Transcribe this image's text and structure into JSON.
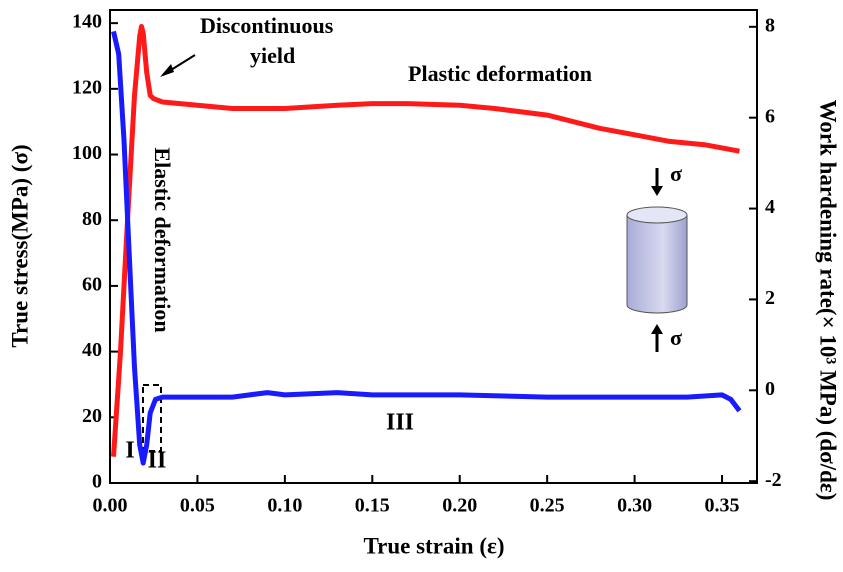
{
  "chart_data": {
    "type": "line",
    "x_label": "True strain  (ε)",
    "y_label": "True stress(MPa) (σ)",
    "y2_label": "Work hardening rate(× 10³ MPa) (dσ/dε)",
    "xlim": [
      0,
      0.37
    ],
    "ylim": [
      0,
      144
    ],
    "y2lim": [
      -2.04,
      8.37
    ],
    "xticks": [
      {
        "value": 0,
        "label": "0.00"
      },
      0.05,
      {
        "value": 0.1,
        "label": "0.10"
      },
      0.15,
      {
        "value": 0.2,
        "label": "0.20"
      },
      0.25,
      {
        "value": 0.3,
        "label": "0.30"
      },
      0.35
    ],
    "yticks": [
      0,
      20,
      40,
      60,
      80,
      100,
      120,
      140
    ],
    "y2ticks": [
      -2,
      0,
      2,
      4,
      6,
      8
    ],
    "series": [
      {
        "color": "#ff1a1a",
        "x": [
          0.002,
          0.006,
          0.01,
          0.014,
          0.017,
          0.018,
          0.019,
          0.021,
          0.023,
          0.025,
          0.03,
          0.05,
          0.07,
          0.1,
          0.13,
          0.15,
          0.17,
          0.2,
          0.22,
          0.25,
          0.28,
          0.3,
          0.32,
          0.34,
          0.36
        ],
        "values": [
          8,
          40,
          80,
          118,
          136,
          139,
          137,
          125,
          118,
          117,
          116,
          115,
          114,
          114,
          115,
          115.5,
          115.5,
          115,
          114,
          112,
          108,
          106,
          104,
          103,
          101
        ]
      },
      {
        "color": "#1a1aff",
        "axis": "y2",
        "x": [
          0.002,
          0.005,
          0.008,
          0.011,
          0.014,
          0.017,
          0.019,
          0.021,
          0.023,
          0.026,
          0.03,
          0.05,
          0.07,
          0.09,
          0.1,
          0.13,
          0.15,
          0.2,
          0.25,
          0.3,
          0.33,
          0.35,
          0.355,
          0.36
        ],
        "values": [
          7.9,
          7.4,
          5.5,
          3,
          0.5,
          -1.2,
          -1.6,
          -1.2,
          -0.5,
          -0.2,
          -0.15,
          -0.15,
          -0.15,
          -0.05,
          -0.1,
          -0.05,
          -0.1,
          -0.1,
          -0.15,
          -0.15,
          -0.15,
          -0.1,
          -0.2,
          -0.45
        ]
      }
    ],
    "annotations": [
      "Discontinuous",
      "yield",
      "Plastic deformation",
      "Elastic deformation",
      "I",
      "II",
      "III",
      "σ",
      "σ"
    ]
  }
}
